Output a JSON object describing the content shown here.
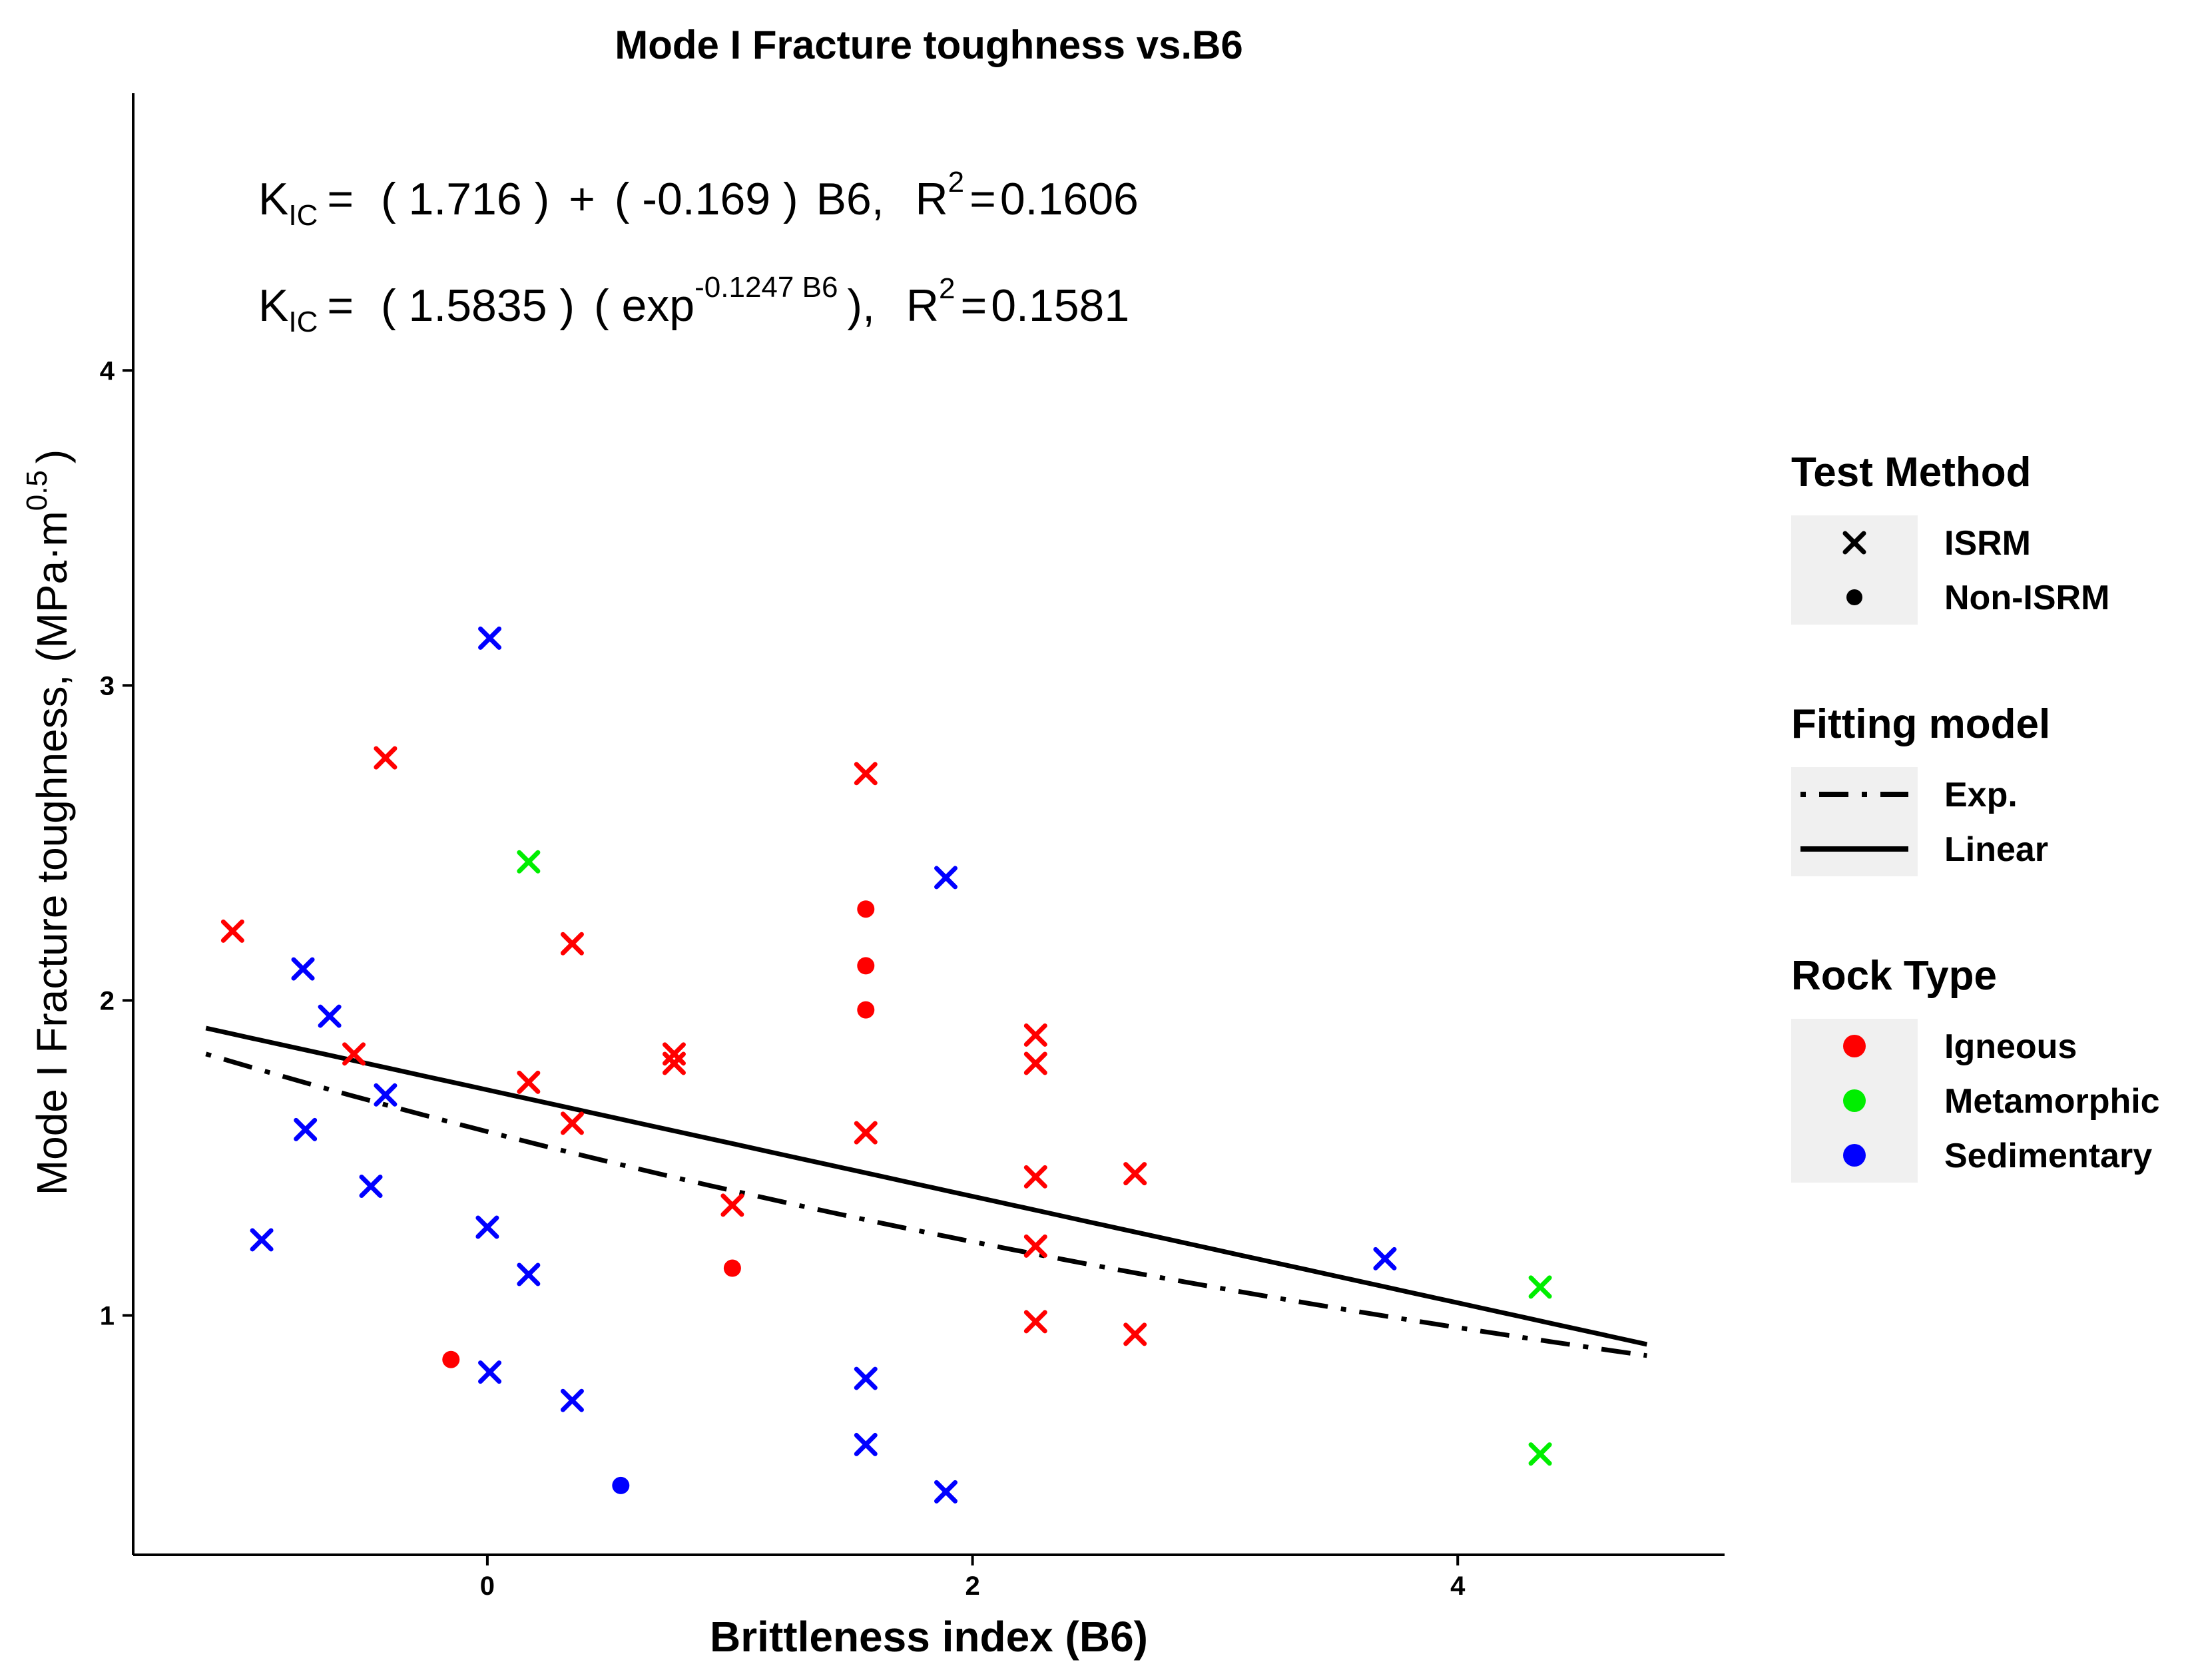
{
  "chart_data": {
    "type": "scatter",
    "title": "Mode I Fracture toughness vs.B6",
    "xlabel": "Brittleness index (B6)",
    "ylabel": "Mode I Fracture toughness, (MPa·m",
    "ylabel_sup": "0.5",
    "ylabel_close": ")",
    "xlim": [
      -1.46,
      5.1
    ],
    "ylim": [
      0.24,
      4.88
    ],
    "x_ticks": [
      0,
      2,
      4
    ],
    "x_tick_labels": [
      "0",
      "2",
      "4"
    ],
    "y_ticks": [
      1,
      2,
      3,
      4
    ],
    "y_tick_labels": [
      "1",
      "2",
      "3",
      "4"
    ],
    "grid": false,
    "equations": {
      "linear": {
        "k": "K",
        "k_sub": "IC",
        "eq": "=",
        "intercept": "( 1.716 )",
        "plus": "+",
        "slope": "( -0.169 )",
        "var": "B6,",
        "r": "R",
        "r_sup": "2",
        "r_eq": "=",
        "r2": "0.1606"
      },
      "exp": {
        "k": "K",
        "k_sub": "IC",
        "eq": "=",
        "coef": "( 1.5835 )",
        "exp_open": "( exp",
        "exp_sup": "-0.1247 B6",
        "exp_close": "),",
        "r": "R",
        "r_sup": "2",
        "r_eq": "=",
        "r2": "0.1581"
      }
    },
    "colors": {
      "Igneous": "#ff0000",
      "Metamorphic": "#00ee00",
      "Sedimentary": "#0000ff"
    },
    "points": [
      {
        "x": -1.05,
        "y": 2.22,
        "rock": "Igneous",
        "method": "ISRM"
      },
      {
        "x": -0.42,
        "y": 2.77,
        "rock": "Igneous",
        "method": "ISRM"
      },
      {
        "x": -0.55,
        "y": 1.83,
        "rock": "Igneous",
        "method": "ISRM"
      },
      {
        "x": -0.15,
        "y": 0.86,
        "rock": "Igneous",
        "method": "Non-ISRM"
      },
      {
        "x": 0.17,
        "y": 1.74,
        "rock": "Igneous",
        "method": "ISRM"
      },
      {
        "x": 0.35,
        "y": 2.18,
        "rock": "Igneous",
        "method": "ISRM"
      },
      {
        "x": 0.35,
        "y": 1.61,
        "rock": "Igneous",
        "method": "ISRM"
      },
      {
        "x": 0.77,
        "y": 1.83,
        "rock": "Igneous",
        "method": "ISRM"
      },
      {
        "x": 0.77,
        "y": 1.8,
        "rock": "Igneous",
        "method": "ISRM"
      },
      {
        "x": 1.01,
        "y": 1.35,
        "rock": "Igneous",
        "method": "ISRM"
      },
      {
        "x": 1.01,
        "y": 1.15,
        "rock": "Igneous",
        "method": "Non-ISRM"
      },
      {
        "x": 1.56,
        "y": 2.72,
        "rock": "Igneous",
        "method": "ISRM"
      },
      {
        "x": 1.56,
        "y": 2.29,
        "rock": "Igneous",
        "method": "Non-ISRM"
      },
      {
        "x": 1.56,
        "y": 2.11,
        "rock": "Igneous",
        "method": "Non-ISRM"
      },
      {
        "x": 1.56,
        "y": 1.97,
        "rock": "Igneous",
        "method": "Non-ISRM"
      },
      {
        "x": 1.56,
        "y": 1.58,
        "rock": "Igneous",
        "method": "ISRM"
      },
      {
        "x": 2.26,
        "y": 1.89,
        "rock": "Igneous",
        "method": "ISRM"
      },
      {
        "x": 2.26,
        "y": 1.8,
        "rock": "Igneous",
        "method": "ISRM"
      },
      {
        "x": 2.26,
        "y": 1.44,
        "rock": "Igneous",
        "method": "ISRM"
      },
      {
        "x": 2.26,
        "y": 1.22,
        "rock": "Igneous",
        "method": "ISRM"
      },
      {
        "x": 2.26,
        "y": 0.98,
        "rock": "Igneous",
        "method": "ISRM"
      },
      {
        "x": 2.67,
        "y": 1.45,
        "rock": "Igneous",
        "method": "ISRM"
      },
      {
        "x": 2.67,
        "y": 0.94,
        "rock": "Igneous",
        "method": "ISRM"
      },
      {
        "x": 0.17,
        "y": 2.44,
        "rock": "Metamorphic",
        "method": "ISRM"
      },
      {
        "x": 4.34,
        "y": 1.09,
        "rock": "Metamorphic",
        "method": "ISRM"
      },
      {
        "x": 4.34,
        "y": 0.56,
        "rock": "Metamorphic",
        "method": "ISRM"
      },
      {
        "x": 0.01,
        "y": 3.15,
        "rock": "Sedimentary",
        "method": "ISRM"
      },
      {
        "x": -0.76,
        "y": 2.1,
        "rock": "Sedimentary",
        "method": "ISRM"
      },
      {
        "x": -0.65,
        "y": 1.95,
        "rock": "Sedimentary",
        "method": "ISRM"
      },
      {
        "x": -0.42,
        "y": 1.7,
        "rock": "Sedimentary",
        "method": "ISRM"
      },
      {
        "x": -0.75,
        "y": 1.59,
        "rock": "Sedimentary",
        "method": "ISRM"
      },
      {
        "x": -0.48,
        "y": 1.41,
        "rock": "Sedimentary",
        "method": "ISRM"
      },
      {
        "x": -0.93,
        "y": 1.24,
        "rock": "Sedimentary",
        "method": "ISRM"
      },
      {
        "x": 0.0,
        "y": 1.28,
        "rock": "Sedimentary",
        "method": "ISRM"
      },
      {
        "x": 0.17,
        "y": 1.13,
        "rock": "Sedimentary",
        "method": "ISRM"
      },
      {
        "x": 0.01,
        "y": 0.82,
        "rock": "Sedimentary",
        "method": "ISRM"
      },
      {
        "x": 0.35,
        "y": 0.73,
        "rock": "Sedimentary",
        "method": "ISRM"
      },
      {
        "x": 0.55,
        "y": 0.46,
        "rock": "Sedimentary",
        "method": "Non-ISRM"
      },
      {
        "x": 1.56,
        "y": 0.8,
        "rock": "Sedimentary",
        "method": "ISRM"
      },
      {
        "x": 1.56,
        "y": 0.59,
        "rock": "Sedimentary",
        "method": "ISRM"
      },
      {
        "x": 1.89,
        "y": 2.39,
        "rock": "Sedimentary",
        "method": "ISRM"
      },
      {
        "x": 1.89,
        "y": 0.44,
        "rock": "Sedimentary",
        "method": "ISRM"
      },
      {
        "x": 3.7,
        "y": 1.18,
        "rock": "Sedimentary",
        "method": "ISRM"
      }
    ],
    "fit_lines": [
      {
        "name": "Linear",
        "model": "linear",
        "a": 1.716,
        "b": -0.169,
        "x_range": [
          -1.16,
          4.78
        ],
        "style": "solid"
      },
      {
        "name": "Exp.",
        "model": "exp",
        "a": 1.5835,
        "b": -0.1247,
        "x_range": [
          -1.16,
          4.78
        ],
        "style": "dotdash"
      }
    ],
    "legend_position": "right",
    "legends": [
      {
        "title": "Test Method",
        "kind": "shape",
        "items": [
          {
            "label": "ISRM",
            "shape": "cross"
          },
          {
            "label": "Non-ISRM",
            "shape": "dot"
          }
        ]
      },
      {
        "title": "Fitting model",
        "kind": "line",
        "items": [
          {
            "label": "Exp.",
            "style": "dotdash"
          },
          {
            "label": "Linear",
            "style": "solid"
          }
        ]
      },
      {
        "title": "Rock Type",
        "kind": "color",
        "items": [
          {
            "label": "Igneous",
            "color": "#ff0000"
          },
          {
            "label": "Metamorphic",
            "color": "#00ee00"
          },
          {
            "label": "Sedimentary",
            "color": "#0000ff"
          }
        ]
      }
    ]
  }
}
